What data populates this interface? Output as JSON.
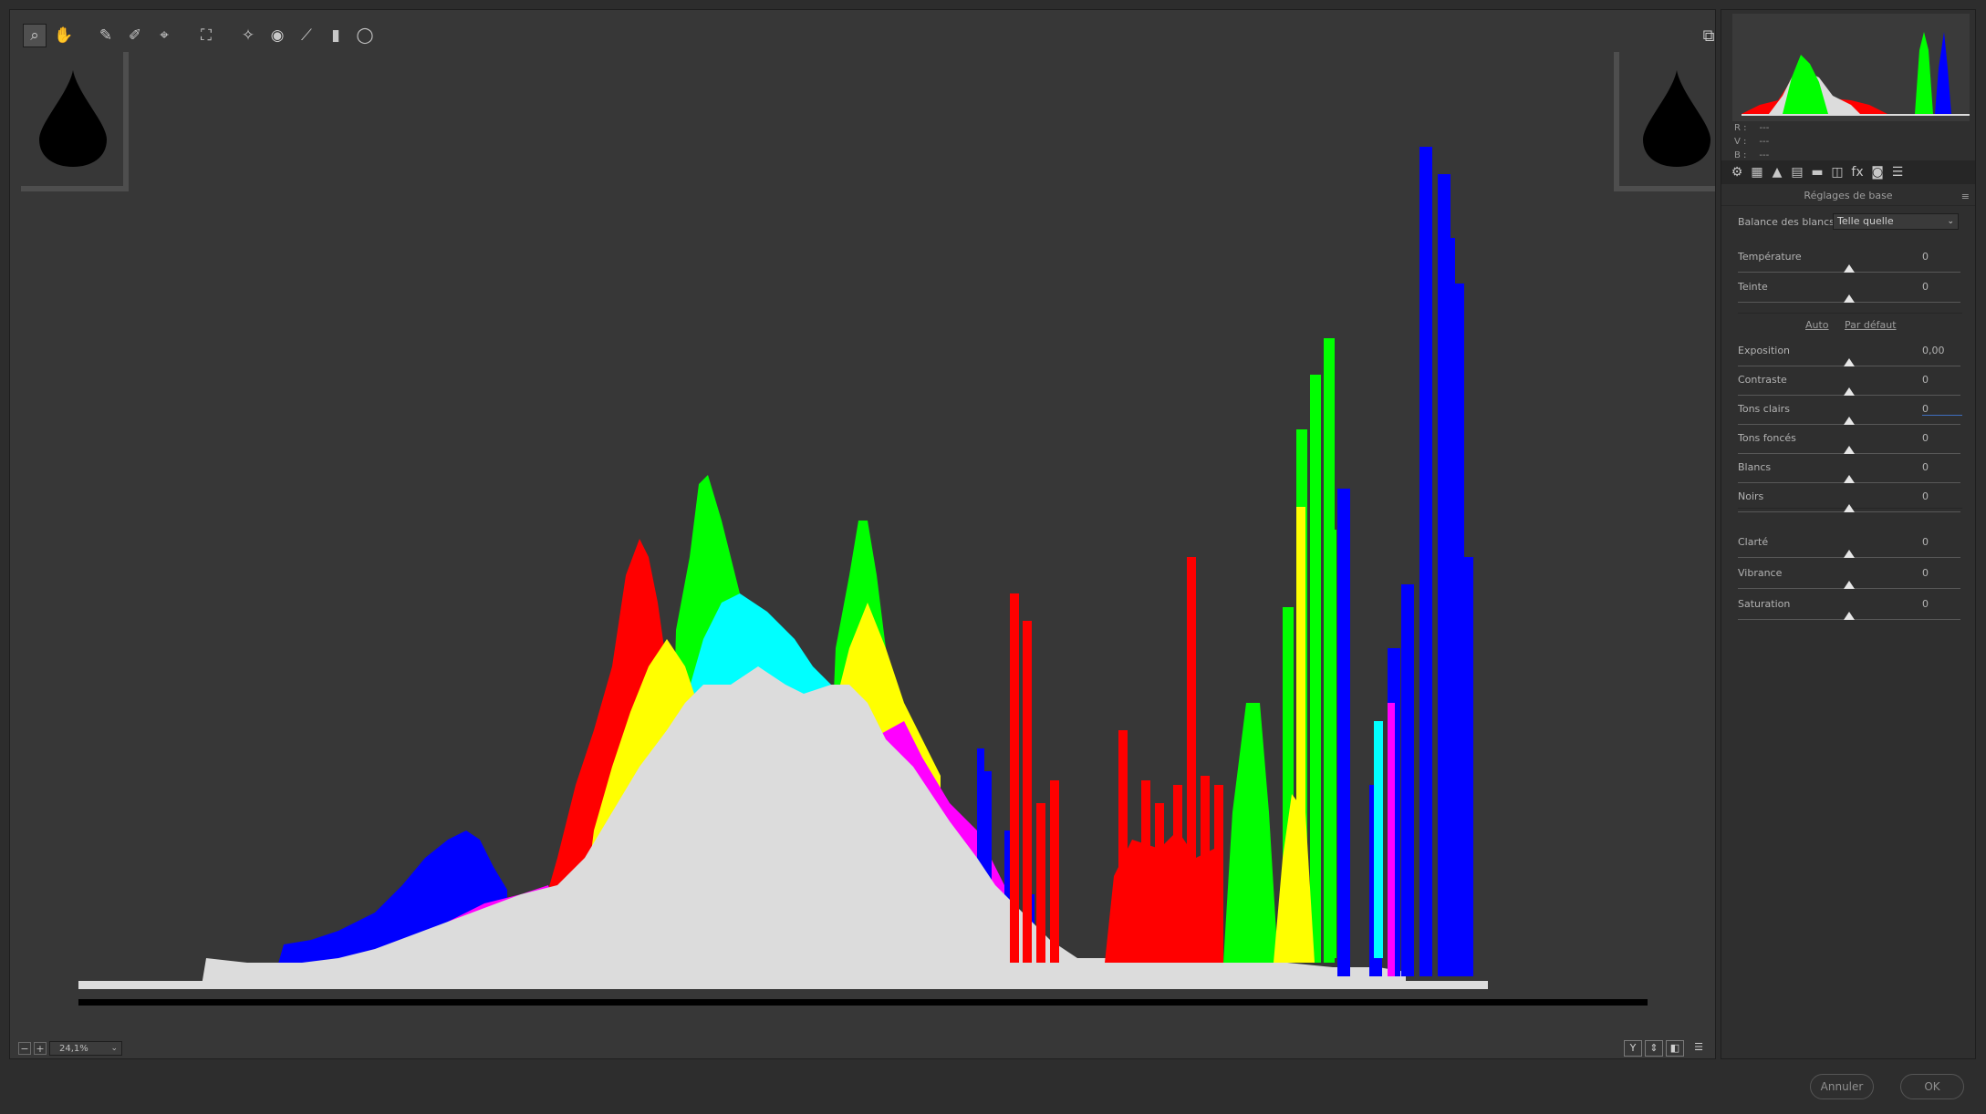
{
  "toolbar": {
    "tools": [
      {
        "name": "zoom-tool",
        "icon": "zoom-icon",
        "glyph": "⌕",
        "active": true
      },
      {
        "name": "hand-tool",
        "icon": "hand-icon",
        "glyph": "✋",
        "active": false
      },
      {
        "name": "white-balance-tool",
        "icon": "eyedropper-icon",
        "glyph": "✎",
        "active": false
      },
      {
        "name": "color-sampler-tool",
        "icon": "color-sampler-icon",
        "glyph": "✐",
        "active": false
      },
      {
        "name": "targeted-adjustment-tool",
        "icon": "target-icon",
        "glyph": "⌖",
        "active": false
      },
      {
        "name": "crop-tool",
        "icon": "crop-icon",
        "glyph": "⛶",
        "active": false
      },
      {
        "name": "spot-removal-tool",
        "icon": "spot-removal-icon",
        "glyph": "✧",
        "active": false
      },
      {
        "name": "red-eye-tool",
        "icon": "red-eye-icon",
        "glyph": "◉",
        "active": false
      },
      {
        "name": "adjustment-brush-tool",
        "icon": "brush-icon",
        "glyph": "⟋",
        "active": false
      },
      {
        "name": "graduated-filter-tool",
        "icon": "graduated-filter-icon",
        "glyph": "▮",
        "active": false
      },
      {
        "name": "radial-filter-tool",
        "icon": "radial-filter-icon",
        "glyph": "◯",
        "active": false
      }
    ],
    "toggle_glyph": "⧉"
  },
  "status_bar": {
    "zoom_minus": "−",
    "zoom_plus": "+",
    "zoom_value": "24,1%",
    "zoom_arrow": "⌄",
    "view_buttons": [
      "Y",
      "⇕",
      "◧",
      "☰"
    ]
  },
  "histogram_colors": {
    "background": "#373737",
    "white": "#dcdcdc",
    "red": "#ff0000",
    "green": "#00ff00",
    "blue": "#0000ff",
    "cyan": "#00ffff",
    "magenta": "#ff00ff",
    "yellow": "#ffff00"
  },
  "rgb_readout": {
    "r_label": "R :",
    "r_value": "---",
    "g_label": "V :",
    "g_value": "---",
    "b_label": "B :",
    "b_value": "---"
  },
  "panel_tabs": [
    "⚙",
    "▦",
    "▲",
    "▤",
    "▬",
    "◫",
    "fx",
    "◙",
    "☰"
  ],
  "panel": {
    "title": "Réglages de base",
    "menu_glyph": "≡",
    "white_balance_label": "Balance des blancs :",
    "white_balance_value": "Telle quelle",
    "white_balance_arrow": "⌄",
    "auto_link": "Auto",
    "default_link": "Par défaut",
    "sliders": [
      {
        "label": "Température",
        "value": "0"
      },
      {
        "label": "Teinte",
        "value": "0"
      },
      {
        "label": "Exposition",
        "value": "0,00"
      },
      {
        "label": "Contraste",
        "value": "0"
      },
      {
        "label": "Tons clairs",
        "value": "0"
      },
      {
        "label": "Tons foncés",
        "value": "0"
      },
      {
        "label": "Blancs",
        "value": "0"
      },
      {
        "label": "Noirs",
        "value": "0"
      },
      {
        "label": "Clarté",
        "value": "0"
      },
      {
        "label": "Vibrance",
        "value": "0"
      },
      {
        "label": "Saturation",
        "value": "0"
      }
    ]
  },
  "footer": {
    "cancel_label": "Annuler",
    "ok_label": "OK"
  }
}
